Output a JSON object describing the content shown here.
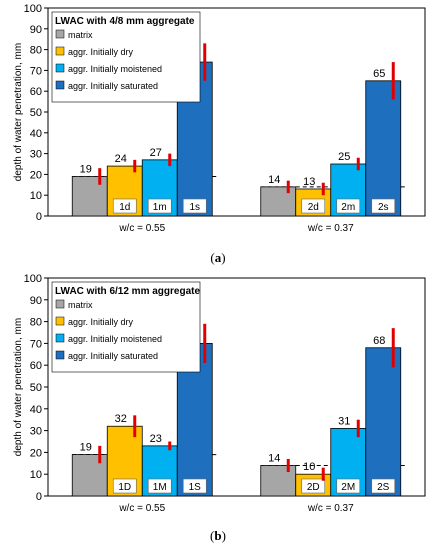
{
  "chart_data": [
    {
      "type": "bar",
      "title": "LWAC with 4/8 mm aggregate",
      "ylabel": "depth of water penetration,  mm",
      "ylim": [
        0,
        100
      ],
      "yticks": [
        0,
        10,
        20,
        30,
        40,
        50,
        60,
        70,
        80,
        90,
        100
      ],
      "categories": [
        "w/c = 0.55",
        "w/c = 0.37"
      ],
      "series": [
        {
          "name": "matrix",
          "color": "#a6a6a6",
          "values": [
            19,
            14
          ],
          "tags": [
            "",
            ""
          ],
          "errors": [
            4,
            3
          ]
        },
        {
          "name": "aggr. Initially dry",
          "color": "#ffc000",
          "values": [
            24,
            13
          ],
          "tags": [
            "1d",
            "2d"
          ],
          "errors": [
            3,
            3
          ]
        },
        {
          "name": "aggr. Initially moistened",
          "color": "#00b0f0",
          "values": [
            27,
            25
          ],
          "tags": [
            "1m",
            "2m"
          ],
          "errors": [
            3,
            3
          ]
        },
        {
          "name": "aggr. Initially saturated",
          "color": "#1f6fbf",
          "values": [
            74,
            65
          ],
          "tags": [
            "1s",
            "2s"
          ],
          "errors": [
            9,
            9
          ]
        }
      ],
      "reference_lines": [
        19,
        14
      ],
      "caption_letter": "a"
    },
    {
      "type": "bar",
      "title": "LWAC with 6/12 mm aggregate",
      "ylabel": "depth of water penetration,  mm",
      "ylim": [
        0,
        100
      ],
      "yticks": [
        0,
        10,
        20,
        30,
        40,
        50,
        60,
        70,
        80,
        90,
        100
      ],
      "categories": [
        "w/c = 0.55",
        "w/c = 0.37"
      ],
      "series": [
        {
          "name": "matrix",
          "color": "#a6a6a6",
          "values": [
            19,
            14
          ],
          "tags": [
            "",
            ""
          ],
          "errors": [
            4,
            3
          ]
        },
        {
          "name": "aggr. Initially dry",
          "color": "#ffc000",
          "values": [
            32,
            10
          ],
          "tags": [
            "1D",
            "2D"
          ],
          "errors": [
            5,
            3
          ]
        },
        {
          "name": "aggr. Initially moistened",
          "color": "#00b0f0",
          "values": [
            23,
            31
          ],
          "tags": [
            "1M",
            "2M"
          ],
          "errors": [
            2,
            4
          ]
        },
        {
          "name": "aggr. Initially saturated",
          "color": "#1f6fbf",
          "values": [
            70,
            68
          ],
          "tags": [
            "1S",
            "2S"
          ],
          "errors": [
            9,
            9
          ]
        }
      ],
      "reference_lines": [
        19,
        14
      ],
      "caption_letter": "b"
    }
  ]
}
